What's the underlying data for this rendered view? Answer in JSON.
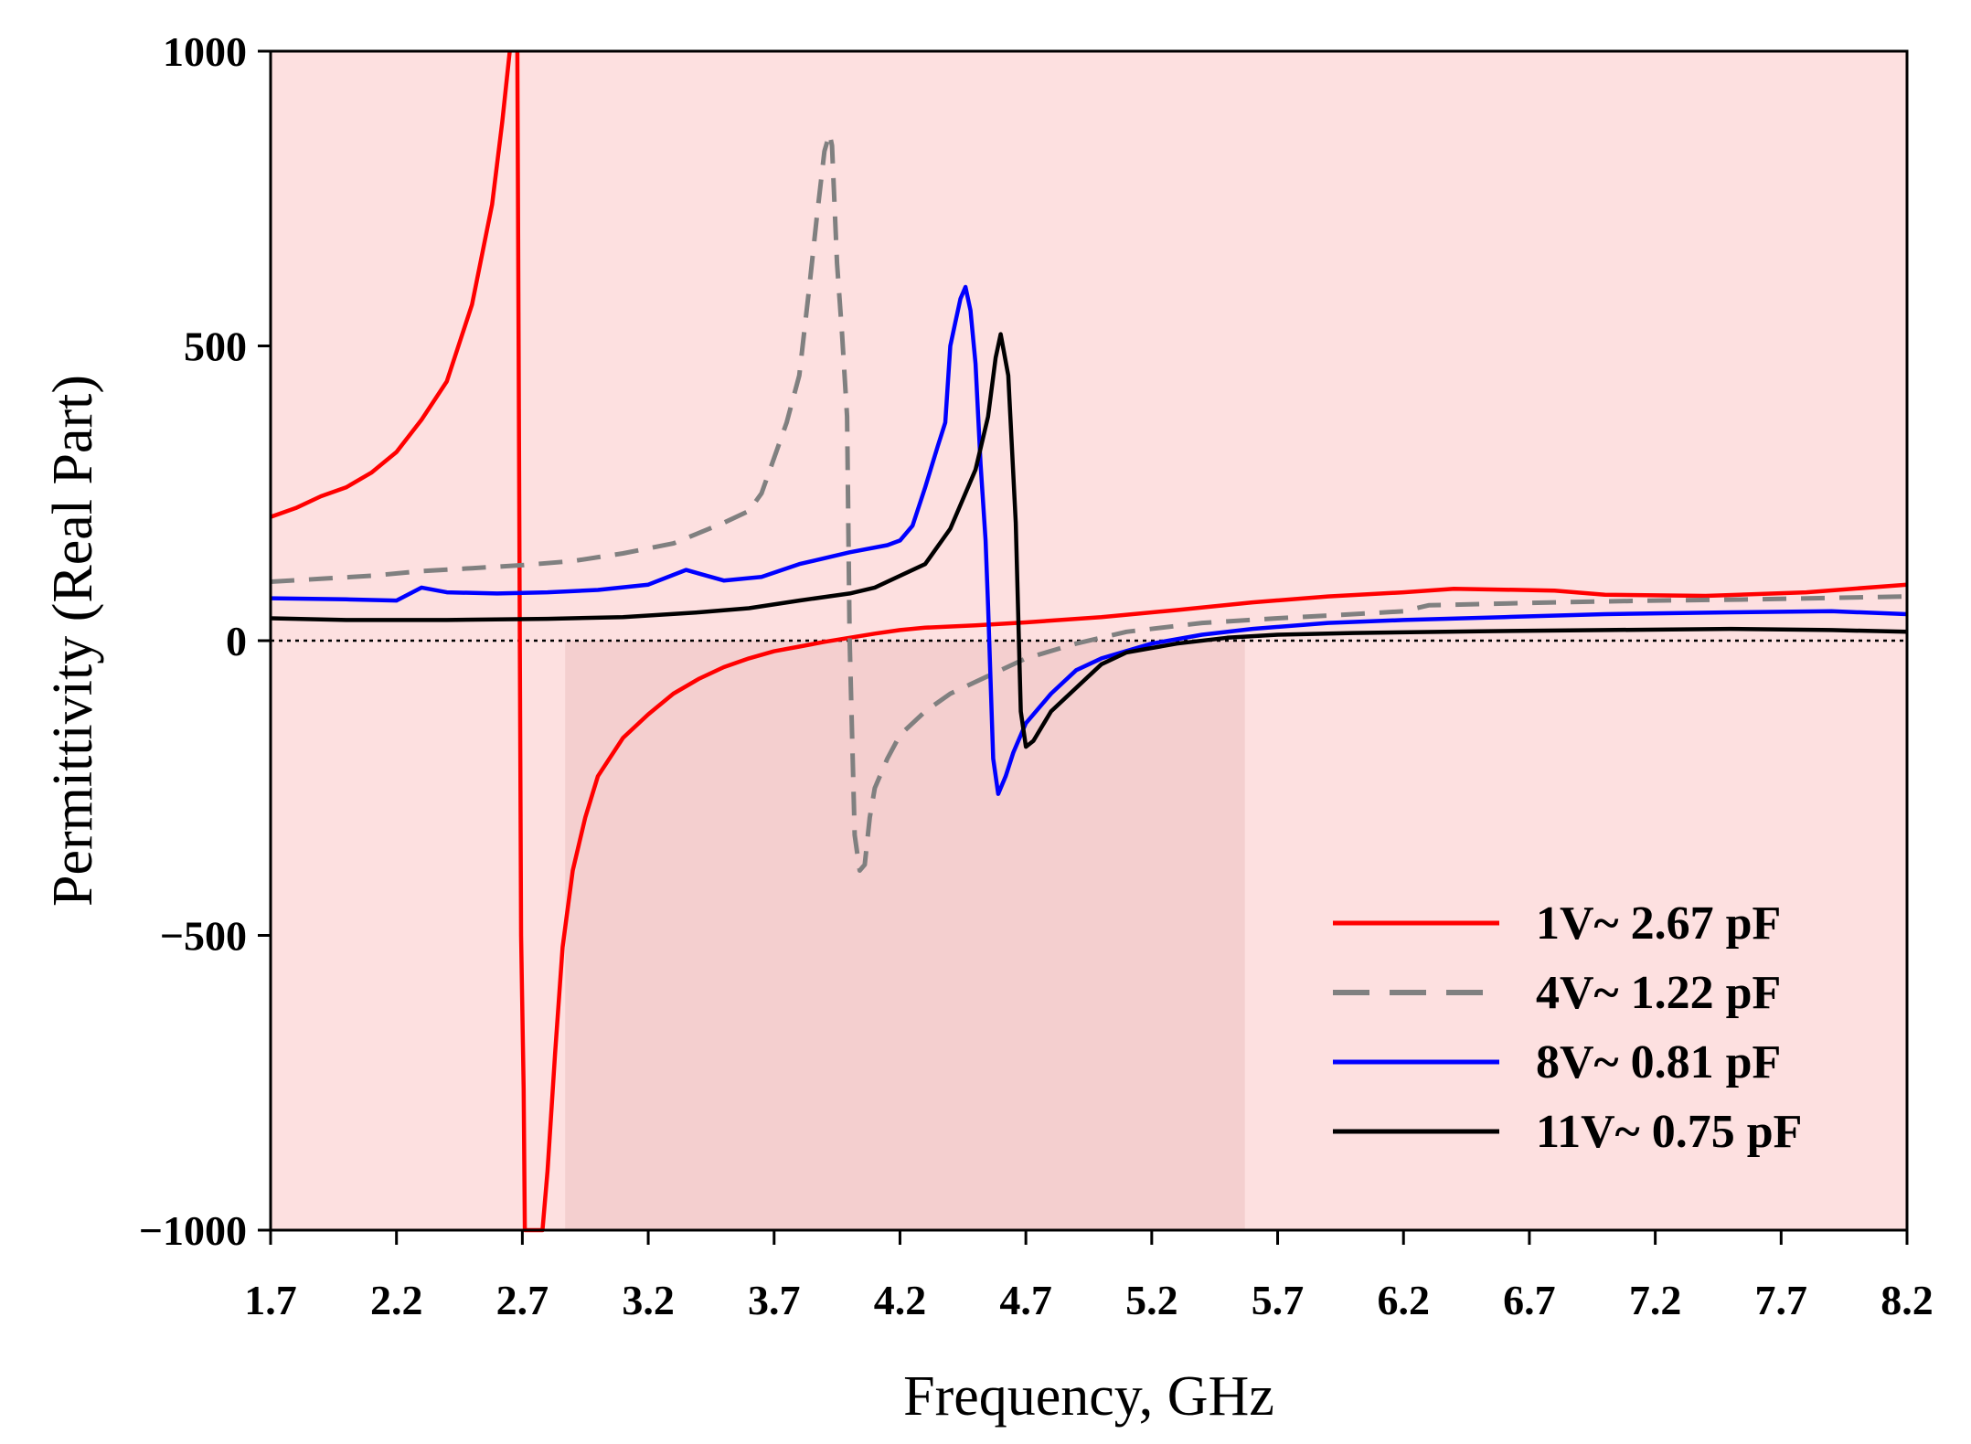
{
  "chart_data": {
    "type": "line",
    "xlabel": "Frequency, GHz",
    "ylabel": "Permittivity (Real Part)",
    "xlim": [
      1.7,
      8.2
    ],
    "ylim": [
      -1000,
      1000
    ],
    "xticks": [
      "1.7",
      "2.2",
      "2.7",
      "3.2",
      "3.7",
      "4.2",
      "4.7",
      "5.2",
      "5.7",
      "6.2",
      "6.7",
      "7.2",
      "7.7",
      "8.2"
    ],
    "yticks": [
      "1000",
      "500",
      "0",
      "−500",
      "−1000"
    ],
    "ytick_values": [
      1000,
      500,
      0,
      -500,
      -1000
    ],
    "background_color": "#fde0e0",
    "shaded_band": {
      "x": [
        2.87,
        5.57
      ],
      "color": "#f4cfcf"
    },
    "zero_line": true,
    "legend_position": "bottom-right",
    "series": [
      {
        "name": "1V~ 2.67 pF",
        "color": "#ff0000",
        "style": "solid",
        "points": [
          [
            1.7,
            210
          ],
          [
            1.8,
            225
          ],
          [
            1.9,
            245
          ],
          [
            2.0,
            260
          ],
          [
            2.1,
            285
          ],
          [
            2.2,
            320
          ],
          [
            2.3,
            375
          ],
          [
            2.4,
            440
          ],
          [
            2.5,
            570
          ],
          [
            2.58,
            740
          ],
          [
            2.62,
            880
          ],
          [
            2.65,
            1000
          ],
          [
            null,
            null
          ],
          [
            2.68,
            1000
          ],
          [
            2.685,
            500
          ],
          [
            2.69,
            0
          ],
          [
            2.695,
            -500
          ],
          [
            2.705,
            -760
          ],
          [
            2.71,
            -1000
          ],
          [
            2.72,
            -1000
          ],
          [
            2.75,
            -1000
          ],
          [
            2.78,
            -1000
          ],
          [
            2.8,
            -900
          ],
          [
            2.83,
            -700
          ],
          [
            2.86,
            -520
          ],
          [
            2.9,
            -390
          ],
          [
            2.95,
            -300
          ],
          [
            3.0,
            -230
          ],
          [
            3.1,
            -165
          ],
          [
            3.2,
            -125
          ],
          [
            3.3,
            -90
          ],
          [
            3.4,
            -65
          ],
          [
            3.5,
            -45
          ],
          [
            3.6,
            -30
          ],
          [
            3.7,
            -18
          ],
          [
            3.8,
            -10
          ],
          [
            3.9,
            -2
          ],
          [
            4.0,
            5
          ],
          [
            4.1,
            12
          ],
          [
            4.2,
            18
          ],
          [
            4.3,
            22
          ],
          [
            4.5,
            26
          ],
          [
            4.7,
            31
          ],
          [
            5.0,
            40
          ],
          [
            5.3,
            52
          ],
          [
            5.6,
            65
          ],
          [
            5.9,
            75
          ],
          [
            6.2,
            82
          ],
          [
            6.4,
            88
          ],
          [
            6.8,
            85
          ],
          [
            7.0,
            78
          ],
          [
            7.4,
            76
          ],
          [
            7.8,
            82
          ],
          [
            8.2,
            95
          ]
        ]
      },
      {
        "name": "4V~ 1.22 pF",
        "color": "#808080",
        "style": "dashed",
        "points": [
          [
            1.7,
            100
          ],
          [
            1.9,
            105
          ],
          [
            2.1,
            110
          ],
          [
            2.3,
            118
          ],
          [
            2.5,
            123
          ],
          [
            2.7,
            128
          ],
          [
            2.9,
            135
          ],
          [
            3.1,
            148
          ],
          [
            3.3,
            165
          ],
          [
            3.5,
            200
          ],
          [
            3.6,
            220
          ],
          [
            3.65,
            250
          ],
          [
            3.7,
            310
          ],
          [
            3.75,
            370
          ],
          [
            3.8,
            450
          ],
          [
            3.84,
            600
          ],
          [
            3.87,
            720
          ],
          [
            3.9,
            830
          ],
          [
            3.92,
            860
          ],
          [
            3.93,
            840
          ],
          [
            3.95,
            640
          ],
          [
            3.97,
            520
          ],
          [
            3.99,
            380
          ],
          [
            4.0,
            0
          ],
          [
            4.02,
            -330
          ],
          [
            4.04,
            -390
          ],
          [
            4.06,
            -380
          ],
          [
            4.08,
            -300
          ],
          [
            4.1,
            -250
          ],
          [
            4.15,
            -200
          ],
          [
            4.2,
            -160
          ],
          [
            4.3,
            -120
          ],
          [
            4.4,
            -90
          ],
          [
            4.55,
            -60
          ],
          [
            4.7,
            -30
          ],
          [
            4.9,
            -5
          ],
          [
            5.1,
            15
          ],
          [
            5.4,
            30
          ],
          [
            5.7,
            38
          ],
          [
            6.0,
            45
          ],
          [
            6.2,
            50
          ],
          [
            6.3,
            60
          ],
          [
            6.5,
            62
          ],
          [
            6.8,
            65
          ],
          [
            7.2,
            68
          ],
          [
            7.6,
            70
          ],
          [
            8.2,
            75
          ]
        ]
      },
      {
        "name": "8V~ 0.81 pF",
        "color": "#0000ff",
        "style": "solid",
        "points": [
          [
            1.7,
            72
          ],
          [
            2.0,
            70
          ],
          [
            2.2,
            68
          ],
          [
            2.3,
            90
          ],
          [
            2.4,
            82
          ],
          [
            2.6,
            80
          ],
          [
            2.8,
            82
          ],
          [
            3.0,
            86
          ],
          [
            3.2,
            95
          ],
          [
            3.35,
            120
          ],
          [
            3.5,
            102
          ],
          [
            3.65,
            108
          ],
          [
            3.8,
            130
          ],
          [
            4.0,
            150
          ],
          [
            4.15,
            162
          ],
          [
            4.2,
            170
          ],
          [
            4.25,
            195
          ],
          [
            4.3,
            260
          ],
          [
            4.35,
            330
          ],
          [
            4.38,
            370
          ],
          [
            4.4,
            500
          ],
          [
            4.42,
            540
          ],
          [
            4.44,
            580
          ],
          [
            4.46,
            600
          ],
          [
            4.48,
            560
          ],
          [
            4.5,
            470
          ],
          [
            4.52,
            300
          ],
          [
            4.54,
            170
          ],
          [
            4.55,
            60
          ],
          [
            4.57,
            -200
          ],
          [
            4.59,
            -260
          ],
          [
            4.62,
            -230
          ],
          [
            4.65,
            -190
          ],
          [
            4.7,
            -140
          ],
          [
            4.8,
            -90
          ],
          [
            4.9,
            -50
          ],
          [
            5.0,
            -30
          ],
          [
            5.2,
            -5
          ],
          [
            5.4,
            10
          ],
          [
            5.6,
            20
          ],
          [
            5.9,
            30
          ],
          [
            6.2,
            35
          ],
          [
            6.6,
            40
          ],
          [
            7.0,
            45
          ],
          [
            7.5,
            48
          ],
          [
            7.9,
            50
          ],
          [
            8.2,
            45
          ]
        ]
      },
      {
        "name": "11V~ 0.75 pF",
        "color": "#000000",
        "style": "solid",
        "points": [
          [
            1.7,
            38
          ],
          [
            2.0,
            35
          ],
          [
            2.4,
            35
          ],
          [
            2.8,
            37
          ],
          [
            3.1,
            40
          ],
          [
            3.4,
            48
          ],
          [
            3.6,
            55
          ],
          [
            3.8,
            68
          ],
          [
            4.0,
            80
          ],
          [
            4.1,
            90
          ],
          [
            4.3,
            130
          ],
          [
            4.4,
            190
          ],
          [
            4.5,
            290
          ],
          [
            4.55,
            380
          ],
          [
            4.58,
            480
          ],
          [
            4.6,
            520
          ],
          [
            4.63,
            450
          ],
          [
            4.66,
            200
          ],
          [
            4.68,
            -120
          ],
          [
            4.7,
            -180
          ],
          [
            4.73,
            -170
          ],
          [
            4.8,
            -120
          ],
          [
            4.9,
            -80
          ],
          [
            5.0,
            -40
          ],
          [
            5.1,
            -20
          ],
          [
            5.3,
            -5
          ],
          [
            5.5,
            5
          ],
          [
            5.7,
            10
          ],
          [
            6.0,
            13
          ],
          [
            6.5,
            16
          ],
          [
            7.0,
            18
          ],
          [
            7.5,
            20
          ],
          [
            7.9,
            18
          ],
          [
            8.2,
            15
          ]
        ]
      }
    ]
  }
}
